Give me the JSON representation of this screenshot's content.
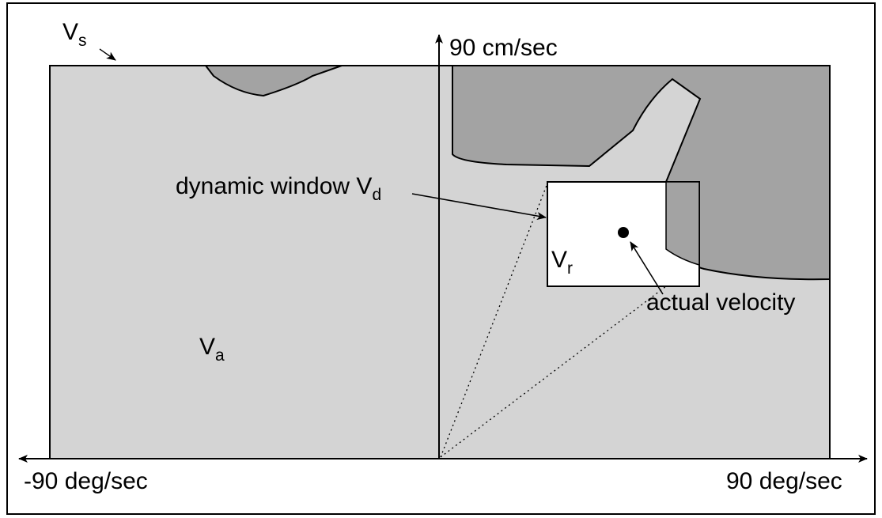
{
  "labels": {
    "vs": {
      "main": "V",
      "sub": "s"
    },
    "va": {
      "main": "V",
      "sub": "a"
    },
    "vr": {
      "main": "V",
      "sub": "r"
    },
    "dynamic_window": {
      "text": "dynamic window V",
      "sub": "d"
    },
    "actual_velocity": "actual velocity",
    "y_axis_label": "90 cm/sec",
    "x_axis_left_label": "-90 deg/sec",
    "x_axis_right_label": "90 deg/sec"
  },
  "colors": {
    "admissible_fill": "#d4d4d4",
    "obstacle_fill": "#a3a3a3",
    "window_fill": "#ffffff",
    "stroke": "#000000"
  }
}
